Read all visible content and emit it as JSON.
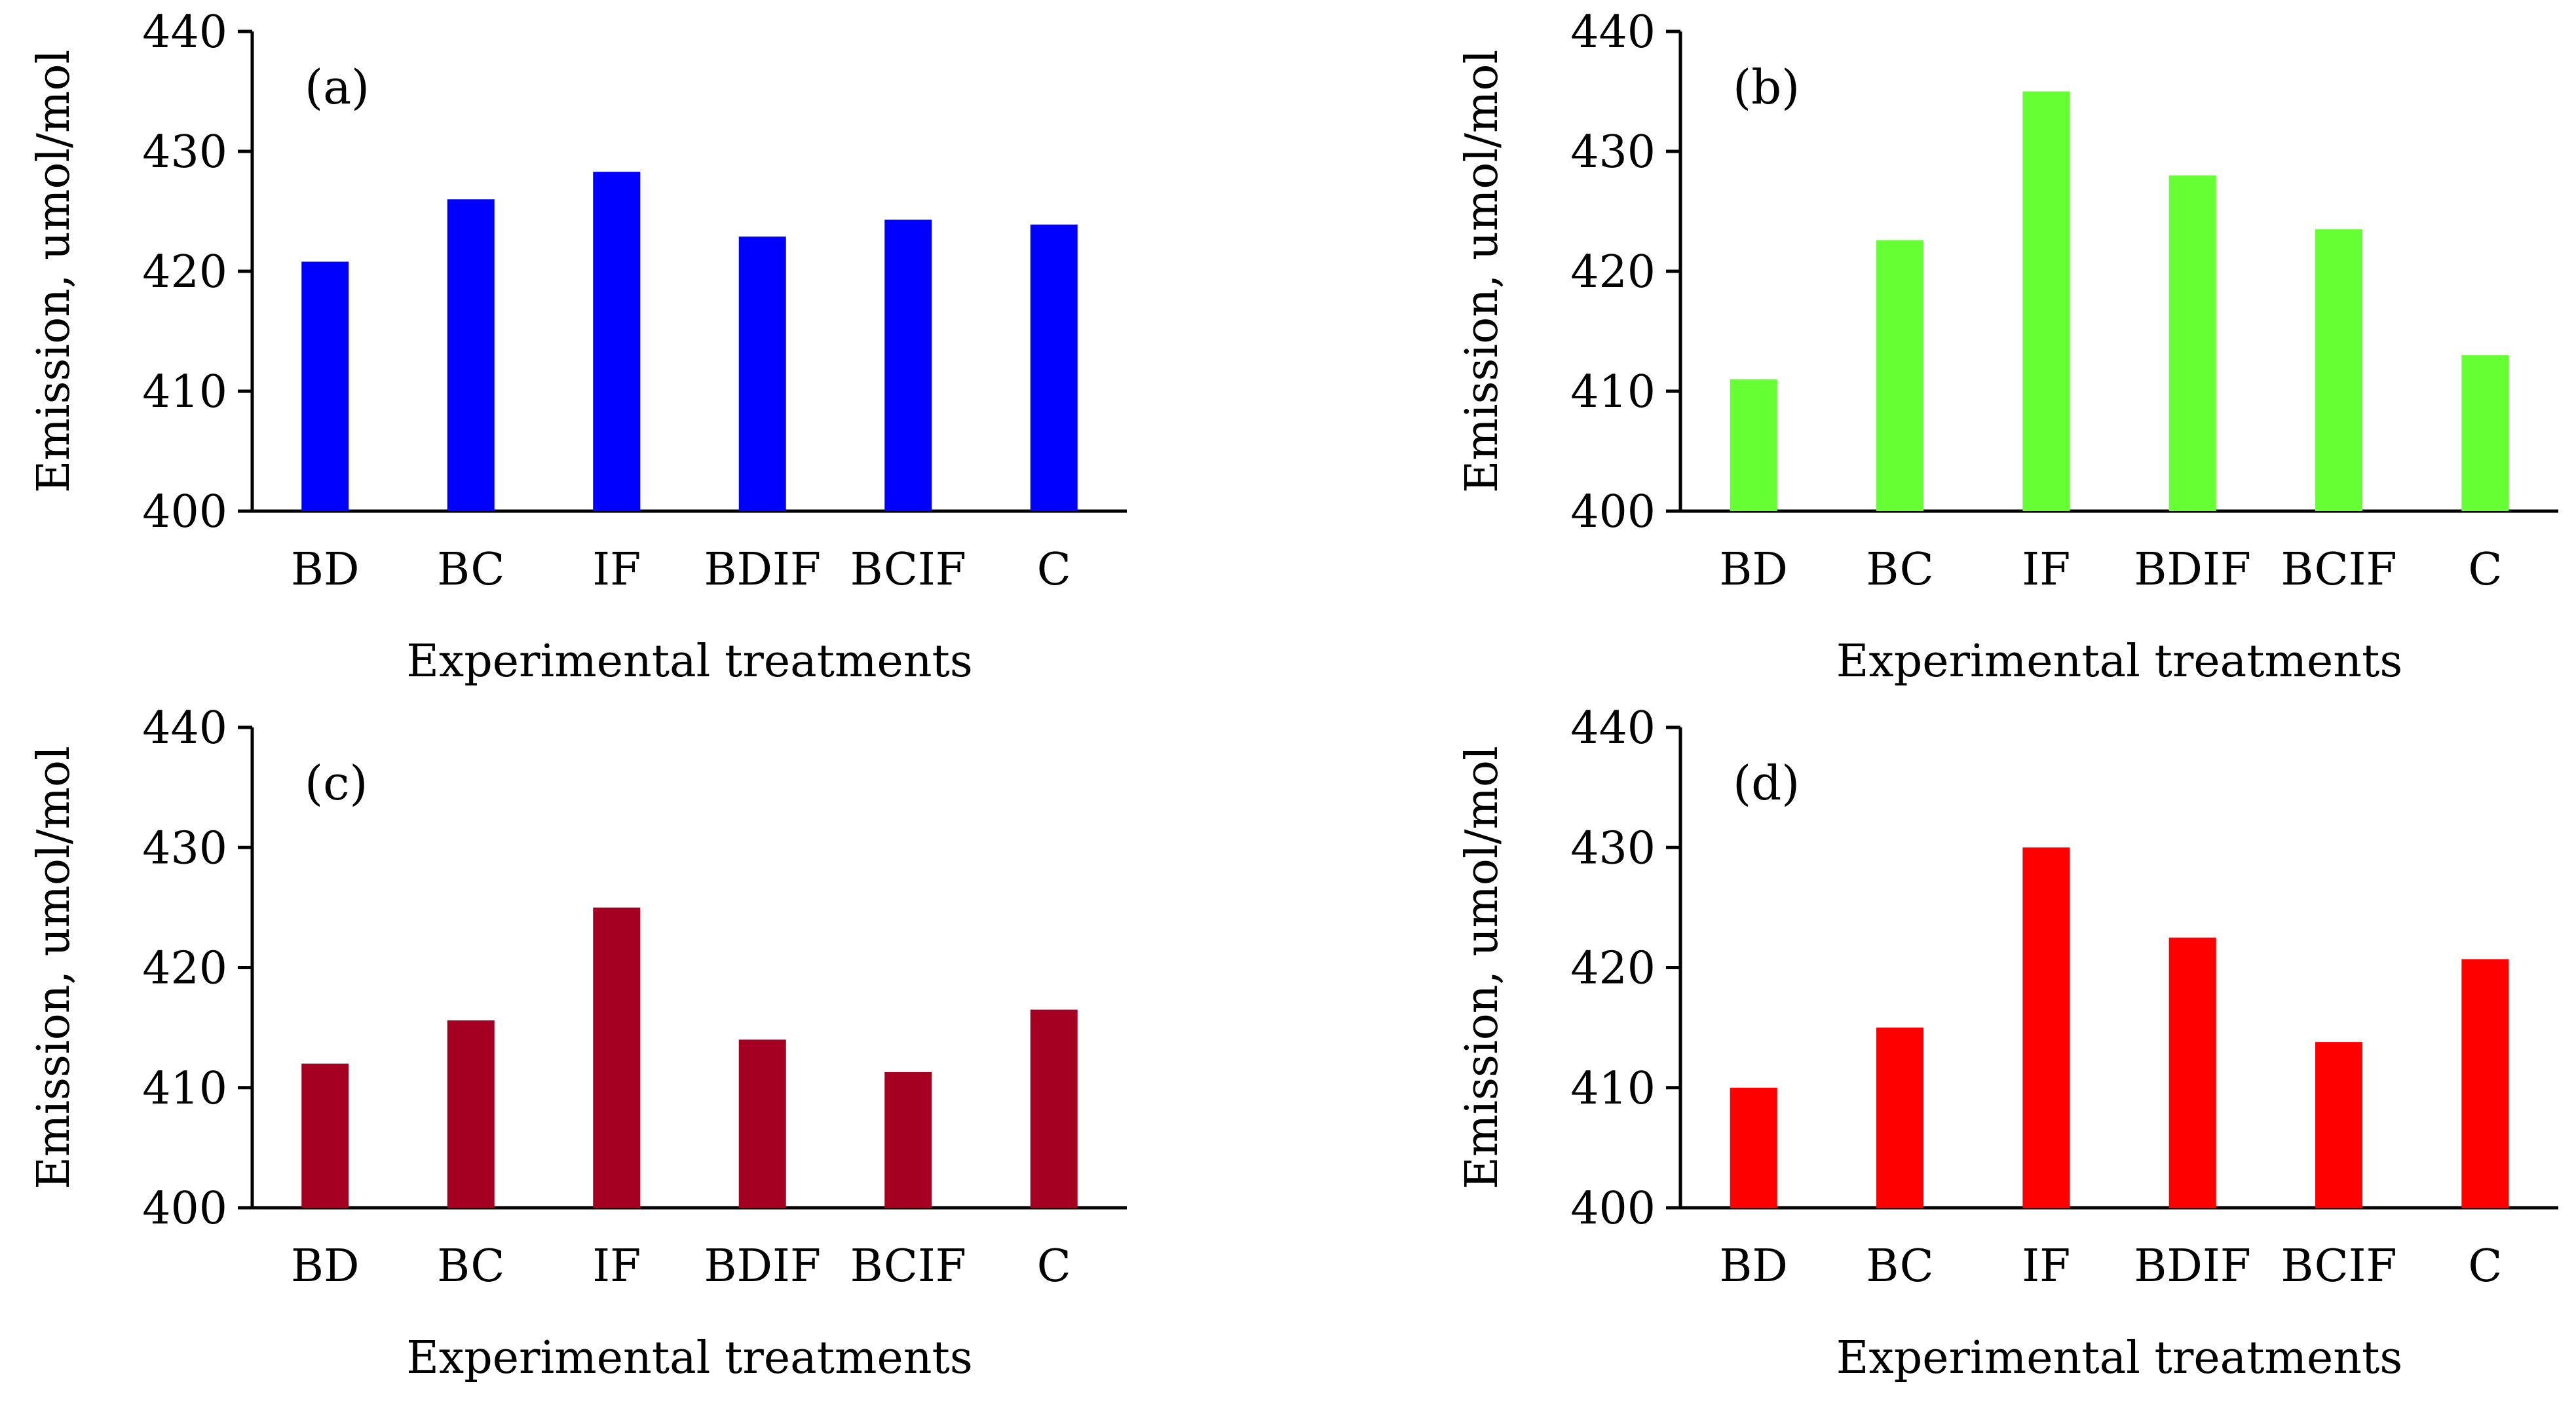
{
  "chart_data": [
    {
      "type": "bar",
      "panel_label": "(a)",
      "color": "#0000ff",
      "categories": [
        "BD",
        "BC",
        "IF",
        "BDIF",
        "BCIF",
        "C"
      ],
      "values": [
        420.8,
        426.0,
        428.3,
        422.9,
        424.3,
        423.9
      ],
      "xlabel": "Experimental treatments",
      "ylabel": "Emission, umol/mol",
      "ylim": [
        400,
        440
      ],
      "yticks": [
        "400",
        "410",
        "420",
        "430",
        "440"
      ],
      "grid": false
    },
    {
      "type": "bar",
      "panel_label": "(b)",
      "color": "#66ff33",
      "categories": [
        "BD",
        "BC",
        "IF",
        "BDIF",
        "BCIF",
        "C"
      ],
      "values": [
        411.0,
        422.6,
        435.0,
        428.0,
        423.5,
        413.0
      ],
      "xlabel": "Experimental treatments",
      "ylabel": "Emission, umol/mol",
      "ylim": [
        400,
        440
      ],
      "yticks": [
        "400",
        "410",
        "420",
        "430",
        "440"
      ],
      "grid": false
    },
    {
      "type": "bar",
      "panel_label": "(c)",
      "color": "#a50021",
      "categories": [
        "BD",
        "BC",
        "IF",
        "BDIF",
        "BCIF",
        "C"
      ],
      "values": [
        412.0,
        415.6,
        425.0,
        414.0,
        411.3,
        416.5
      ],
      "xlabel": "Experimental treatments",
      "ylabel": "Emission, umol/mol",
      "ylim": [
        400,
        440
      ],
      "yticks": [
        "400",
        "410",
        "420",
        "430",
        "440"
      ],
      "grid": false
    },
    {
      "type": "bar",
      "panel_label": "(d)",
      "color": "#ff0000",
      "categories": [
        "BD",
        "BC",
        "IF",
        "BDIF",
        "BCIF",
        "C"
      ],
      "values": [
        410.0,
        415.0,
        430.0,
        422.5,
        413.8,
        420.7
      ],
      "xlabel": "Experimental treatments",
      "ylabel": "Emission, umol/mol",
      "ylim": [
        400,
        440
      ],
      "yticks": [
        "400",
        "410",
        "420",
        "430",
        "440"
      ],
      "grid": false
    }
  ]
}
